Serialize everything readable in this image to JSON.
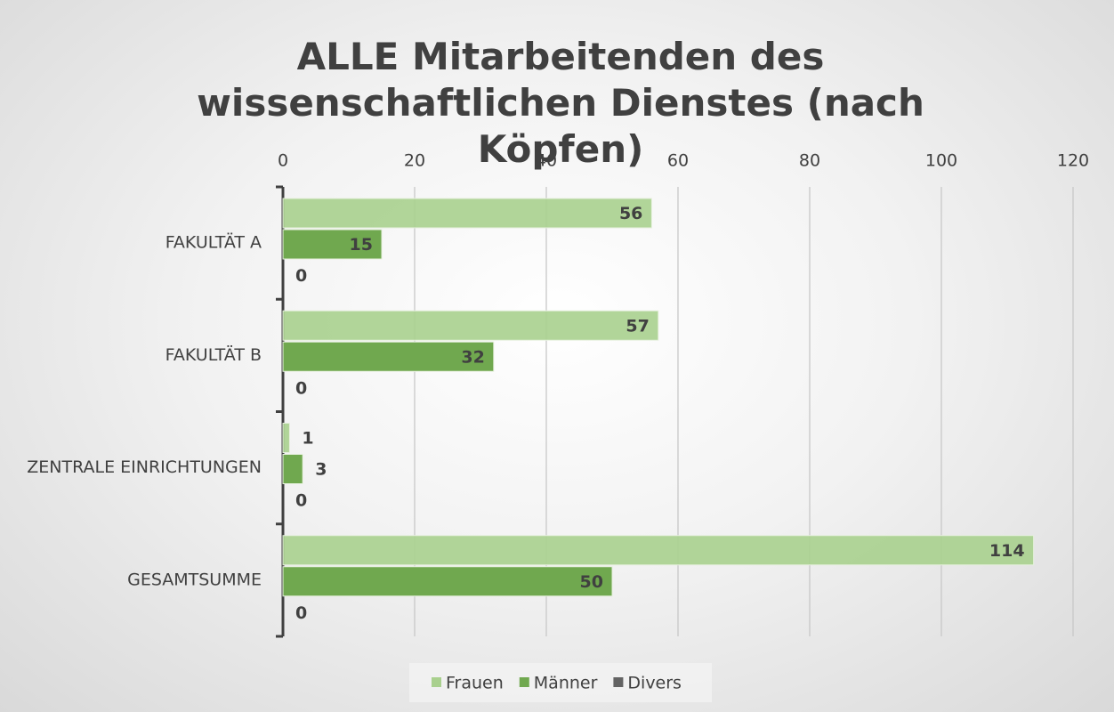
{
  "chart_data": {
    "type": "bar",
    "orientation": "horizontal",
    "title": "ALLE Mitarbeitenden des wissenschaftlichen Dienstes (nach Köpfen)",
    "categories": [
      "FAKULTÄT A",
      "FAKULTÄT B",
      "ZENTRALE EINRICHTUNGEN",
      "GESAMTSUMME"
    ],
    "series": [
      {
        "name": "Frauen",
        "color": "#a9d08e",
        "values": [
          56,
          57,
          1,
          114
        ]
      },
      {
        "name": "Männer",
        "color": "#70a84f",
        "values": [
          15,
          32,
          3,
          50
        ]
      },
      {
        "name": "Divers",
        "color": "#636363",
        "values": [
          0,
          0,
          0,
          0
        ]
      }
    ],
    "xlim": [
      0,
      120
    ],
    "xticks": [
      0,
      20,
      40,
      60,
      80,
      100,
      120
    ],
    "grid": true,
    "legend": "bottom"
  }
}
